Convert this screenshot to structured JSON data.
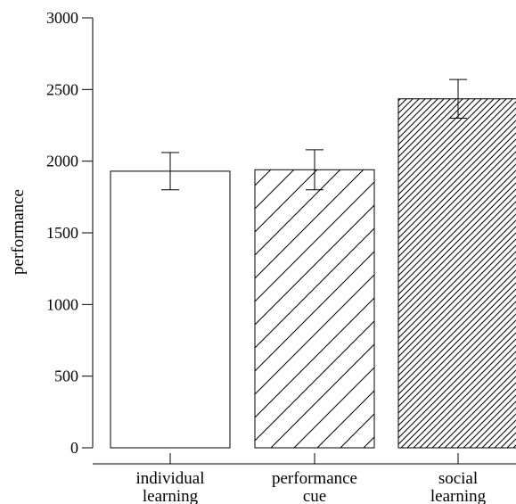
{
  "chart_data": {
    "type": "bar",
    "ylabel": "performance",
    "xlabel": "",
    "ylim": [
      0,
      3000
    ],
    "yticks": [
      0,
      500,
      1000,
      1500,
      2000,
      2500,
      3000
    ],
    "categories": [
      {
        "line1": "individual",
        "line2": "learning"
      },
      {
        "line1": "performance",
        "line2": "cue"
      },
      {
        "line1": "social",
        "line2": "learning"
      }
    ],
    "values": [
      1930,
      1940,
      2435
    ],
    "errors": [
      130,
      140,
      135
    ],
    "fills": [
      "none",
      "sparse-diagonal-hatch",
      "dense-diagonal-hatch"
    ],
    "grid": false,
    "colors": {
      "bar_stroke": "#000000",
      "background": "#ffffff"
    }
  }
}
